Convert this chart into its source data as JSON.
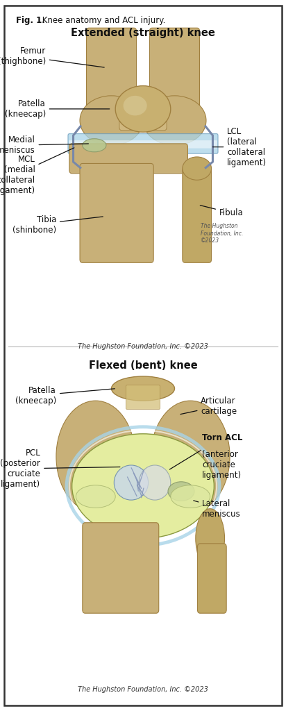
{
  "fig_label": "Fig. 1.",
  "fig_title_rest": " Knee anatomy and ACL injury.",
  "title1": "Extended (straight) knee",
  "title2": "Flexed (bent) knee",
  "copyright": "The Hughston Foundation, Inc. ©2023",
  "copyright2": "The Hughston Foundation, Inc. ©2023",
  "copyright_inside": "The Hughston\nFoundation, Inc.\n©2023",
  "bg_color": "#ffffff",
  "border_color": "#333333",
  "text_color": "#111111",
  "line_color": "#111111",
  "femur_color": "#c8b078",
  "bone_dark": "#a08040",
  "blue_color": "#a8d4e8",
  "green_color": "#b8c890",
  "yellow_color": "#e8f0a0"
}
